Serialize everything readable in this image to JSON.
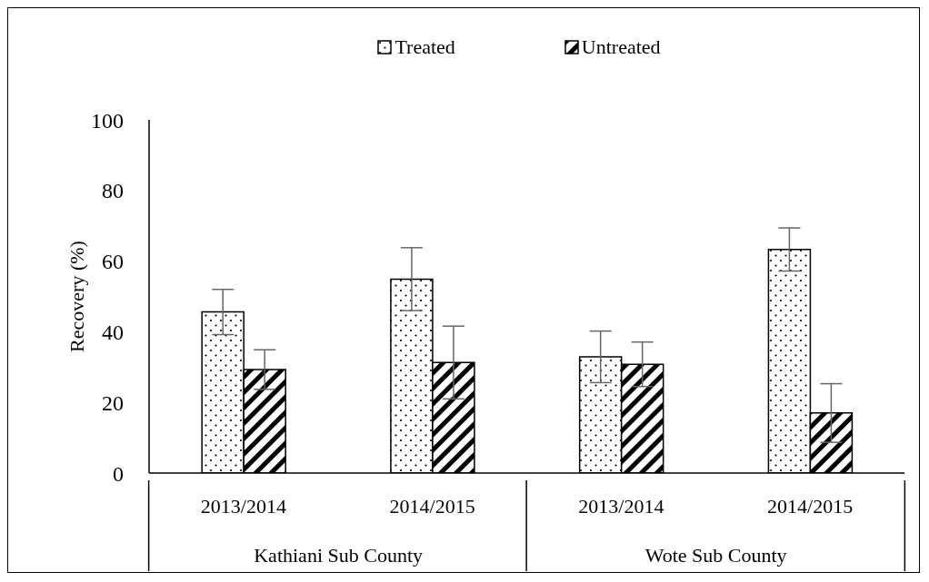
{
  "chart_data": {
    "type": "bar",
    "ylabel": "Recovery (%)",
    "categories": [
      "2013/2014",
      "2014/2015",
      "2013/2014",
      "2014/2015"
    ],
    "series": [
      {
        "name": "Treated",
        "color": "#000000",
        "values": [
          45.6,
          54.9,
          32.9,
          63.3
        ],
        "errors": [
          6.4,
          8.9,
          7.3,
          6.1
        ]
      },
      {
        "name": "Untreated",
        "color": "#000000",
        "values": [
          29.3,
          31.3,
          30.8,
          17.0
        ],
        "errors": [
          5.6,
          10.3,
          6.3,
          8.3
        ]
      }
    ],
    "annotations": [
      "Kathiani Sub County",
      "Wote Sub County"
    ],
    "ylim": [
      0,
      100
    ],
    "yticks": [
      0,
      20,
      40,
      60,
      80,
      100
    ],
    "grid": false,
    "legend": "top"
  }
}
